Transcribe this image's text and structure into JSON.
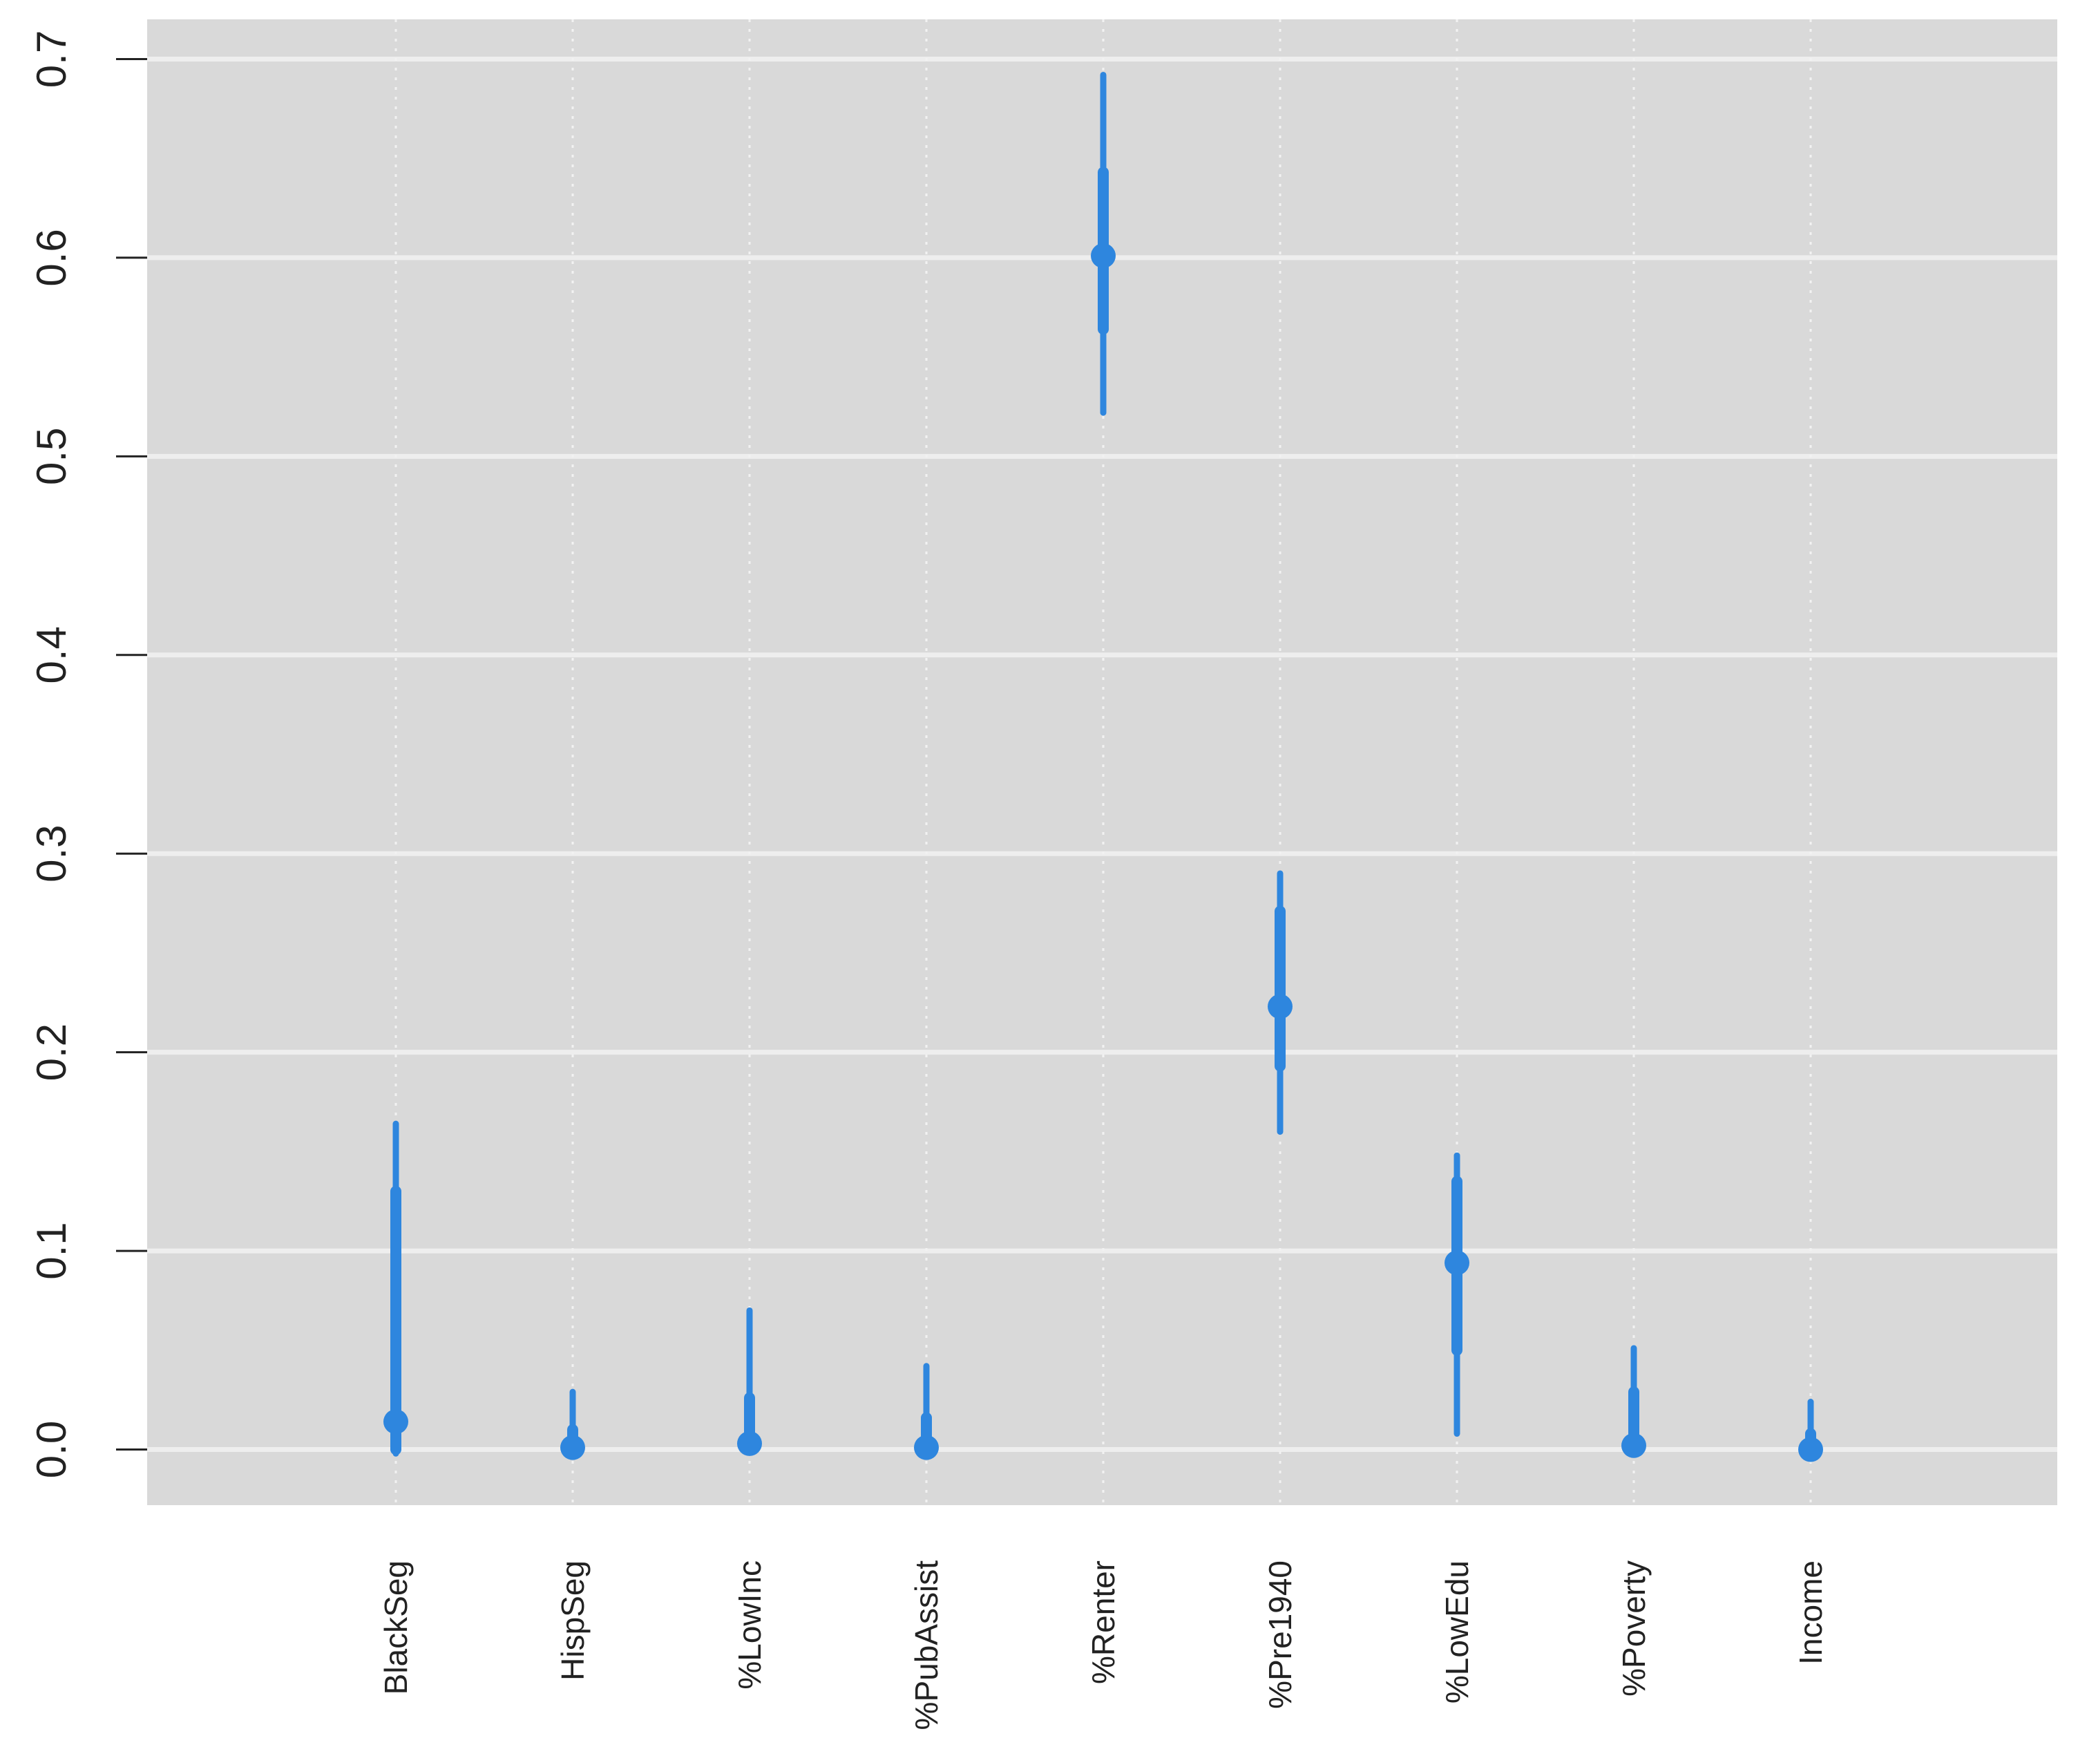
{
  "chart_data": {
    "type": "scatter",
    "categories": [
      "BlackSeg",
      "HispSeg",
      "%LowInc",
      "%PubAssist",
      "%Renter",
      "%Pre1940",
      "%LowEdu",
      "%Poverty",
      "Income"
    ],
    "y_ticks": [
      "0.0",
      "0.1",
      "0.2",
      "0.3",
      "0.4",
      "0.5",
      "0.6",
      "0.7"
    ],
    "ylim": [
      -0.028,
      0.72
    ],
    "points": [
      {
        "category": "BlackSeg",
        "value": 0.014,
        "inner": [
          0.0,
          0.13
        ],
        "outer": [
          -0.002,
          0.164
        ]
      },
      {
        "category": "HispSeg",
        "value": 0.001,
        "inner": [
          0.0,
          0.01
        ],
        "outer": [
          0.0,
          0.029
        ]
      },
      {
        "category": "%LowInc",
        "value": 0.003,
        "inner": [
          0.0,
          0.026
        ],
        "outer": [
          0.0,
          0.07
        ]
      },
      {
        "category": "%PubAssist",
        "value": 0.001,
        "inner": [
          0.0,
          0.016
        ],
        "outer": [
          0.0,
          0.042
        ]
      },
      {
        "category": "%Renter",
        "value": 0.601,
        "inner": [
          0.564,
          0.643
        ],
        "outer": [
          0.522,
          0.692
        ]
      },
      {
        "category": "%Pre1940",
        "value": 0.223,
        "inner": [
          0.193,
          0.271
        ],
        "outer": [
          0.16,
          0.29
        ]
      },
      {
        "category": "%LowEdu",
        "value": 0.094,
        "inner": [
          0.05,
          0.135
        ],
        "outer": [
          0.008,
          0.148
        ]
      },
      {
        "category": "%Poverty",
        "value": 0.002,
        "inner": [
          0.0,
          0.029
        ],
        "outer": [
          0.0,
          0.051
        ]
      },
      {
        "category": "Income",
        "value": 0.0,
        "inner": [
          0.0,
          0.008
        ],
        "outer": [
          0.0,
          0.024
        ]
      }
    ],
    "grid": true,
    "colors": {
      "point": "#2e86de",
      "panel": "#d9d9d9",
      "grid": "#eeeeee"
    }
  }
}
